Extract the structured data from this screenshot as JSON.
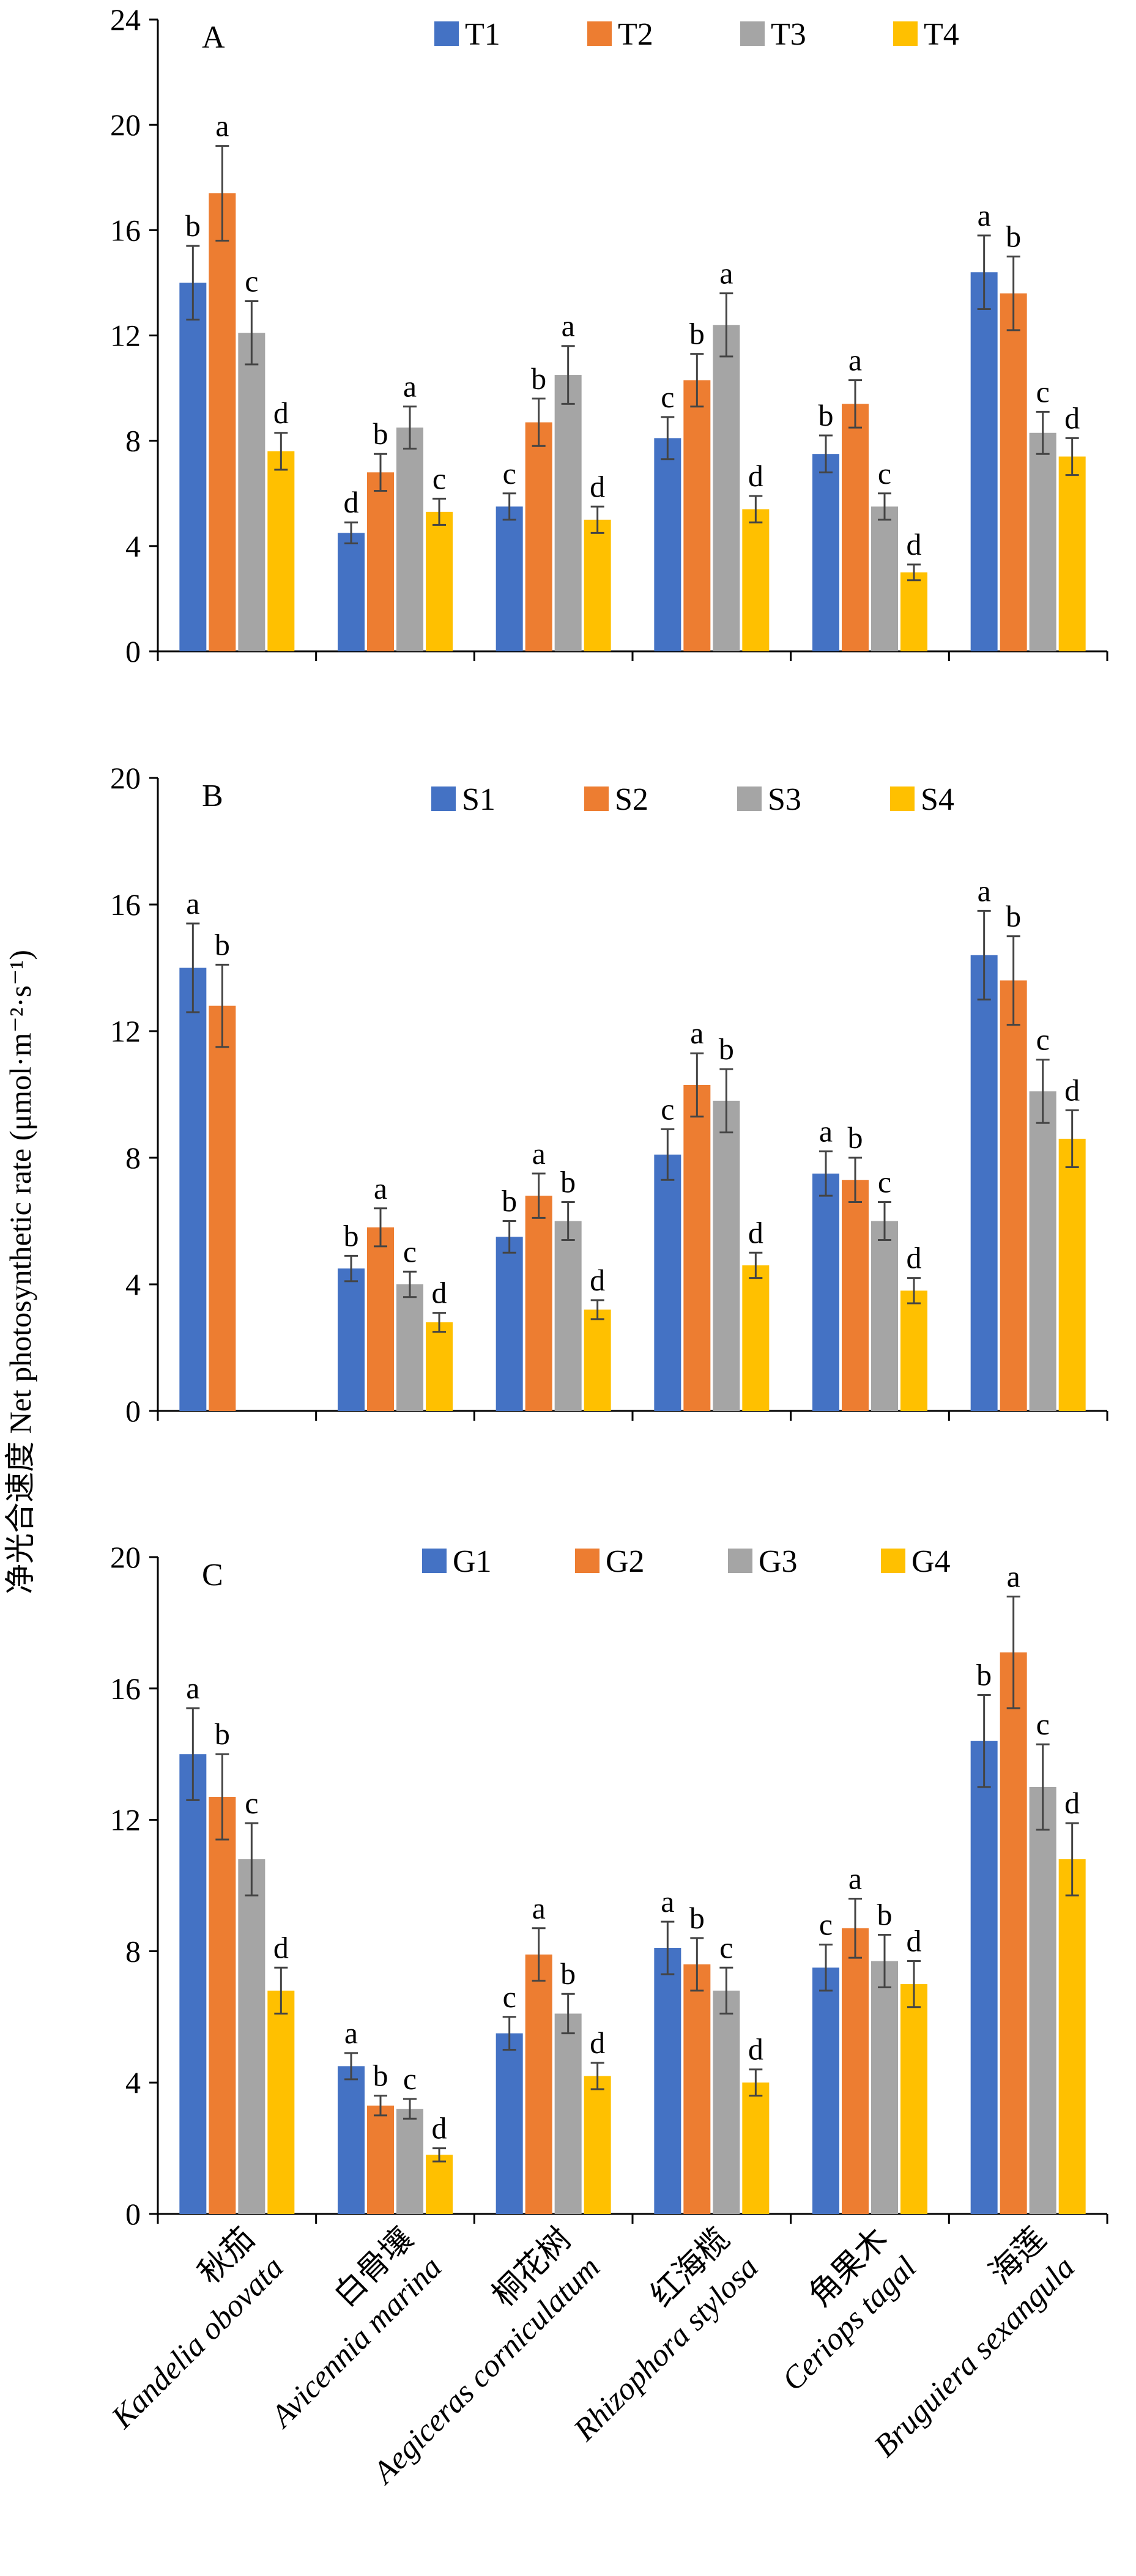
{
  "ylabel": "净光合速度 Net photosynthetic rate (μmol·m⁻²·s⁻¹)",
  "species": [
    {
      "cn": "秋茄",
      "latin": "Kandelia obovata"
    },
    {
      "cn": "白骨壤",
      "latin": "Avicennia marina"
    },
    {
      "cn": "桐花树",
      "latin": "Aegiceras corniculatum"
    },
    {
      "cn": "红海榄",
      "latin": "Rhizophora stylosa"
    },
    {
      "cn": "角果木",
      "latin": "Ceriops tagal"
    },
    {
      "cn": "海莲",
      "latin": "Bruguiera sexangula"
    }
  ],
  "colors": [
    "#4472C4",
    "#ED7D31",
    "#A5A5A5",
    "#FFC000"
  ],
  "chart_data": [
    {
      "type": "bar",
      "panel": "A",
      "ylim": [
        0,
        24
      ],
      "yticks": [
        0,
        4,
        8,
        12,
        16,
        20,
        24
      ],
      "categories": [
        "秋茄 Kandelia obovata",
        "白骨壤 Avicennia marina",
        "桐花树 Aegiceras corniculatum",
        "红海榄 Rhizophora stylosa",
        "角果木 Ceriops tagal",
        "海莲 Bruguiera sexangula"
      ],
      "series": [
        {
          "name": "T1",
          "values": [
            14.0,
            4.5,
            5.5,
            8.1,
            7.5,
            14.4
          ],
          "errors": [
            1.4,
            0.4,
            0.5,
            0.8,
            0.7,
            1.4
          ],
          "letters": [
            "b",
            "d",
            "c",
            "c",
            "b",
            "a"
          ]
        },
        {
          "name": "T2",
          "values": [
            17.4,
            6.8,
            8.7,
            10.3,
            9.4,
            13.6
          ],
          "errors": [
            1.8,
            0.7,
            0.9,
            1.0,
            0.9,
            1.4
          ],
          "letters": [
            "a",
            "b",
            "b",
            "b",
            "a",
            "b"
          ]
        },
        {
          "name": "T3",
          "values": [
            12.1,
            8.5,
            10.5,
            12.4,
            5.5,
            8.3
          ],
          "errors": [
            1.2,
            0.8,
            1.1,
            1.2,
            0.5,
            0.8
          ],
          "letters": [
            "c",
            "a",
            "a",
            "a",
            "c",
            "c"
          ]
        },
        {
          "name": "T4",
          "values": [
            7.6,
            5.3,
            5.0,
            5.4,
            3.0,
            7.4
          ],
          "errors": [
            0.7,
            0.5,
            0.5,
            0.5,
            0.3,
            0.7
          ],
          "letters": [
            "d",
            "c",
            "d",
            "d",
            "d",
            "d"
          ]
        }
      ]
    },
    {
      "type": "bar",
      "panel": "B",
      "ylim": [
        0,
        20
      ],
      "yticks": [
        0,
        4,
        8,
        12,
        16,
        20
      ],
      "categories": [
        "秋茄 Kandelia obovata",
        "白骨壤 Avicennia marina",
        "桐花树 Aegiceras corniculatum",
        "红海榄 Rhizophora stylosa",
        "角果木 Ceriops tagal",
        "海莲 Bruguiera sexangula"
      ],
      "series": [
        {
          "name": "S1",
          "values": [
            14.0,
            4.5,
            5.5,
            8.1,
            7.5,
            14.4
          ],
          "errors": [
            1.4,
            0.4,
            0.5,
            0.8,
            0.7,
            1.4
          ],
          "letters": [
            "a",
            "b",
            "b",
            "c",
            "a",
            "a"
          ]
        },
        {
          "name": "S2",
          "values": [
            12.8,
            5.8,
            6.8,
            10.3,
            7.3,
            13.6
          ],
          "errors": [
            1.3,
            0.6,
            0.7,
            1.0,
            0.7,
            1.4
          ],
          "letters": [
            "b",
            "a",
            "a",
            "a",
            "b",
            "b"
          ]
        },
        {
          "name": "S3",
          "values": [
            null,
            4.0,
            6.0,
            9.8,
            6.0,
            10.1
          ],
          "errors": [
            null,
            0.4,
            0.6,
            1.0,
            0.6,
            1.0
          ],
          "letters": [
            null,
            "c",
            "b",
            "b",
            "c",
            "c"
          ]
        },
        {
          "name": "S4",
          "values": [
            null,
            2.8,
            3.2,
            4.6,
            3.8,
            8.6
          ],
          "errors": [
            null,
            0.3,
            0.3,
            0.4,
            0.4,
            0.9
          ],
          "letters": [
            null,
            "d",
            "d",
            "d",
            "d",
            "d"
          ]
        }
      ]
    },
    {
      "type": "bar",
      "panel": "C",
      "ylim": [
        0,
        20
      ],
      "yticks": [
        0,
        4,
        8,
        12,
        16,
        20
      ],
      "categories": [
        "秋茄 Kandelia obovata",
        "白骨壤 Avicennia marina",
        "桐花树 Aegiceras corniculatum",
        "红海榄 Rhizophora stylosa",
        "角果木 Ceriops tagal",
        "海莲 Bruguiera sexangula"
      ],
      "series": [
        {
          "name": "G1",
          "values": [
            14.0,
            4.5,
            5.5,
            8.1,
            7.5,
            14.4
          ],
          "errors": [
            1.4,
            0.4,
            0.5,
            0.8,
            0.7,
            1.4
          ],
          "letters": [
            "a",
            "a",
            "c",
            "a",
            "c",
            "b"
          ]
        },
        {
          "name": "G2",
          "values": [
            12.7,
            3.3,
            7.9,
            7.6,
            8.7,
            17.1
          ],
          "errors": [
            1.3,
            0.3,
            0.8,
            0.8,
            0.9,
            1.7
          ],
          "letters": [
            "b",
            "b",
            "a",
            "b",
            "a",
            "a"
          ]
        },
        {
          "name": "G3",
          "values": [
            10.8,
            3.2,
            6.1,
            6.8,
            7.7,
            13.0
          ],
          "errors": [
            1.1,
            0.3,
            0.6,
            0.7,
            0.8,
            1.3
          ],
          "letters": [
            "c",
            "c",
            "b",
            "c",
            "b",
            "c"
          ]
        },
        {
          "name": "G4",
          "values": [
            6.8,
            1.8,
            4.2,
            4.0,
            7.0,
            10.8
          ],
          "errors": [
            0.7,
            0.2,
            0.4,
            0.4,
            0.7,
            1.1
          ],
          "letters": [
            "d",
            "d",
            "d",
            "d",
            "d",
            "d"
          ]
        }
      ]
    }
  ]
}
